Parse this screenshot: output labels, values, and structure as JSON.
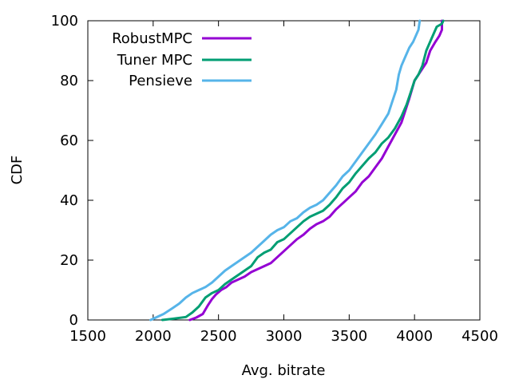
{
  "chart_data": {
    "type": "line",
    "xlabel": "Avg. bitrate",
    "ylabel": "CDF",
    "xlim": [
      1500,
      4500
    ],
    "ylim": [
      0,
      100
    ],
    "xticks": [
      "1500",
      "2000",
      "2500",
      "3000",
      "3500",
      "4000",
      "4500"
    ],
    "yticks": [
      "0",
      "20",
      "40",
      "60",
      "80",
      "100"
    ],
    "grid": false,
    "legend_position": "top-left",
    "series": [
      {
        "name": "RobustMPC",
        "color": "#9400d3",
        "points": [
          [
            2280,
            0
          ],
          [
            2330,
            0.8
          ],
          [
            2380,
            2
          ],
          [
            2420,
            5
          ],
          [
            2450,
            7
          ],
          [
            2480,
            8.5
          ],
          [
            2520,
            10
          ],
          [
            2560,
            11
          ],
          [
            2600,
            12.5
          ],
          [
            2650,
            13.5
          ],
          [
            2700,
            14.5
          ],
          [
            2750,
            16
          ],
          [
            2800,
            17
          ],
          [
            2850,
            18
          ],
          [
            2900,
            19
          ],
          [
            2950,
            21
          ],
          [
            3000,
            23
          ],
          [
            3050,
            25
          ],
          [
            3100,
            27
          ],
          [
            3150,
            28.5
          ],
          [
            3200,
            30.5
          ],
          [
            3250,
            32
          ],
          [
            3300,
            33
          ],
          [
            3350,
            34.5
          ],
          [
            3400,
            37
          ],
          [
            3450,
            39
          ],
          [
            3500,
            41
          ],
          [
            3550,
            43
          ],
          [
            3600,
            46
          ],
          [
            3650,
            48
          ],
          [
            3700,
            51
          ],
          [
            3750,
            54
          ],
          [
            3800,
            58
          ],
          [
            3850,
            62
          ],
          [
            3900,
            66
          ],
          [
            3930,
            70
          ],
          [
            3960,
            74
          ],
          [
            3980,
            77
          ],
          [
            4000,
            80
          ],
          [
            4030,
            82
          ],
          [
            4060,
            84
          ],
          [
            4090,
            86
          ],
          [
            4120,
            90
          ],
          [
            4160,
            93
          ],
          [
            4190,
            95
          ],
          [
            4210,
            97
          ],
          [
            4210,
            100
          ]
        ]
      },
      {
        "name": "Tuner MPC",
        "color": "#009e73",
        "points": [
          [
            2070,
            0
          ],
          [
            2150,
            0.4
          ],
          [
            2250,
            1
          ],
          [
            2300,
            2.5
          ],
          [
            2350,
            4.5
          ],
          [
            2400,
            7.5
          ],
          [
            2450,
            9
          ],
          [
            2500,
            10
          ],
          [
            2550,
            12
          ],
          [
            2600,
            13.5
          ],
          [
            2650,
            15
          ],
          [
            2700,
            16.5
          ],
          [
            2750,
            18
          ],
          [
            2800,
            21
          ],
          [
            2850,
            22.5
          ],
          [
            2900,
            23.5
          ],
          [
            2950,
            26
          ],
          [
            3000,
            27
          ],
          [
            3050,
            29
          ],
          [
            3100,
            31
          ],
          [
            3150,
            33
          ],
          [
            3200,
            34.5
          ],
          [
            3250,
            35.5
          ],
          [
            3300,
            36.5
          ],
          [
            3350,
            38.5
          ],
          [
            3400,
            41
          ],
          [
            3450,
            44
          ],
          [
            3500,
            46
          ],
          [
            3550,
            49
          ],
          [
            3600,
            51.5
          ],
          [
            3650,
            54
          ],
          [
            3700,
            56
          ],
          [
            3750,
            59
          ],
          [
            3800,
            61
          ],
          [
            3850,
            64
          ],
          [
            3900,
            68
          ],
          [
            3940,
            72
          ],
          [
            3970,
            76
          ],
          [
            4000,
            80
          ],
          [
            4030,
            82
          ],
          [
            4060,
            85
          ],
          [
            4090,
            90
          ],
          [
            4130,
            94
          ],
          [
            4170,
            98
          ],
          [
            4210,
            99
          ],
          [
            4220,
            100
          ]
        ]
      },
      {
        "name": "Pensieve",
        "color": "#56b4e9",
        "points": [
          [
            1980,
            0
          ],
          [
            2020,
            0.8
          ],
          [
            2080,
            2
          ],
          [
            2150,
            4
          ],
          [
            2200,
            5.5
          ],
          [
            2250,
            7.5
          ],
          [
            2300,
            9
          ],
          [
            2350,
            10
          ],
          [
            2400,
            11
          ],
          [
            2450,
            12.5
          ],
          [
            2500,
            14.5
          ],
          [
            2550,
            16.5
          ],
          [
            2600,
            18
          ],
          [
            2650,
            19.5
          ],
          [
            2700,
            21
          ],
          [
            2750,
            22.5
          ],
          [
            2800,
            24.5
          ],
          [
            2850,
            26.5
          ],
          [
            2900,
            28.5
          ],
          [
            2950,
            30
          ],
          [
            3000,
            31
          ],
          [
            3050,
            33
          ],
          [
            3100,
            34
          ],
          [
            3150,
            36
          ],
          [
            3200,
            37.5
          ],
          [
            3250,
            38.5
          ],
          [
            3300,
            40
          ],
          [
            3350,
            42.5
          ],
          [
            3400,
            45
          ],
          [
            3450,
            48
          ],
          [
            3500,
            50
          ],
          [
            3550,
            53
          ],
          [
            3600,
            56
          ],
          [
            3650,
            59
          ],
          [
            3700,
            62
          ],
          [
            3750,
            65.5
          ],
          [
            3800,
            69
          ],
          [
            3830,
            73
          ],
          [
            3860,
            77
          ],
          [
            3880,
            82
          ],
          [
            3900,
            85
          ],
          [
            3930,
            88
          ],
          [
            3960,
            91
          ],
          [
            3990,
            93
          ],
          [
            4010,
            95
          ],
          [
            4030,
            97
          ],
          [
            4040,
            100
          ]
        ]
      }
    ]
  }
}
